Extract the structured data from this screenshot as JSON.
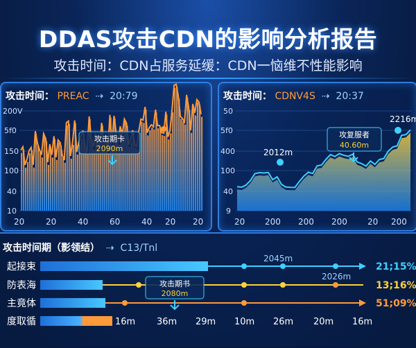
{
  "header": {
    "title": "DDAS攻击CDN的影响分析报告",
    "subtitle": "攻击时间：CDN占服务延缓：CDN一恼维不性能影响"
  },
  "panel_left": {
    "title": "攻击时间：",
    "metric": "PREAC",
    "stat": "20:79",
    "yticks": [
      "200V",
      "5f0",
      "150",
      "100",
      "40",
      "10"
    ],
    "xticks": [
      "20",
      "20",
      "40",
      "60",
      "40",
      "20",
      "20"
    ],
    "annotation_line1": "攻击期卡",
    "annotation_line2": "2090m"
  },
  "panel_right": {
    "title": "攻击时间：",
    "metric": "CDNV4S",
    "stat": "20:37",
    "yticks": [
      "50",
      "5f0",
      "400",
      "100",
      "40",
      "9"
    ],
    "xticks": [
      "20",
      "200",
      "200",
      "200",
      "20",
      "200"
    ],
    "annotation_line1": "攻复服者",
    "annotation_line2": "40.60m",
    "peak_label": "2216m",
    "point_label": "2012m"
  },
  "bottom": {
    "title": "攻击时间期（影领结）",
    "stat": "C13/Tnl",
    "rows": [
      {
        "label": "起接束",
        "value": "21;15%",
        "marker_label": "2045m"
      },
      {
        "label": "防表海",
        "value": "13;16%",
        "marker_label": "2026m"
      },
      {
        "label": "主竟体",
        "value": "51;09%",
        "marker_label": ""
      },
      {
        "label": "度取循",
        "value": "",
        "marker_label": ""
      }
    ],
    "annotation_line1": "攻击期书",
    "annotation_line2": "2080m",
    "xticks": [
      "16m",
      "36m",
      "29m",
      "10m",
      "26m",
      "20m",
      "16m"
    ]
  },
  "colors": {
    "accent_orange": "#ff9a3a",
    "accent_cyan": "#3fd0ff",
    "accent_yellow": "#ffd23a"
  }
}
